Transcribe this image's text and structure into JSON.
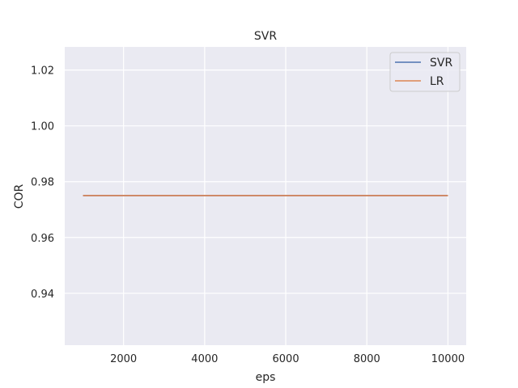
{
  "chart_data": {
    "type": "line",
    "title": "SVR",
    "xlabel": "eps",
    "ylabel": "COR",
    "xlim": [
      550,
      10450
    ],
    "ylim": [
      0.9214,
      1.0283
    ],
    "xticks": [
      2000,
      4000,
      6000,
      8000,
      10000
    ],
    "xtick_labels": [
      "2000",
      "4000",
      "6000",
      "8000",
      "10000"
    ],
    "yticks": [
      0.94,
      0.96,
      0.98,
      1.0,
      1.02
    ],
    "ytick_labels": [
      "0.94",
      "0.96",
      "0.98",
      "1.00",
      "1.02"
    ],
    "grid": true,
    "legend_position": "top-right",
    "background": "#eaeaf2",
    "series": [
      {
        "name": "SVR",
        "color": "#4c72b0",
        "x": [
          1000,
          10000
        ],
        "y": [
          0.975,
          0.975
        ]
      },
      {
        "name": "LR",
        "color": "#dd8452",
        "x": [
          1000,
          10000
        ],
        "y": [
          0.975,
          0.975
        ]
      }
    ]
  }
}
